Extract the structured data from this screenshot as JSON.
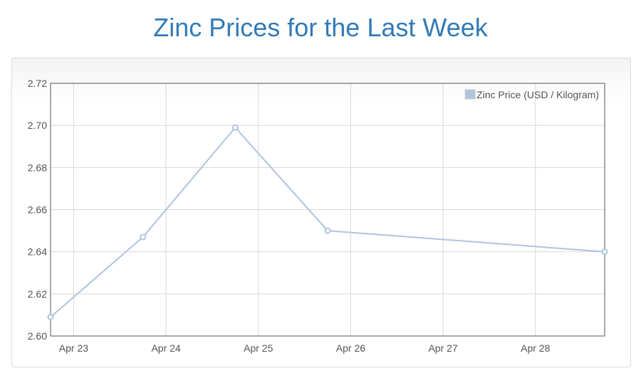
{
  "page": {
    "title": "Zinc Prices for the Last Week"
  },
  "colors": {
    "title": "#337ab7",
    "series": "#b0c4de",
    "grid": "#d8d8d8",
    "axis": "#545454"
  },
  "chart_data": {
    "type": "line",
    "title": "",
    "xlabel": "",
    "ylabel": "",
    "grid": true,
    "legend_position": "top-right",
    "x_ticks": [
      "Apr 23",
      "Apr 24",
      "Apr 25",
      "Apr 26",
      "Apr 27",
      "Apr 28"
    ],
    "y_ticks": [
      "2.60",
      "2.62",
      "2.64",
      "2.66",
      "2.68",
      "2.70",
      "2.72"
    ],
    "ylim": [
      2.6,
      2.72
    ],
    "xlim_days": [
      "Apr 22 18:00",
      "Apr 28 18:00"
    ],
    "series": [
      {
        "name": "Zinc Price (USD / Kilogram)",
        "color": "#b0c4de",
        "points": [
          {
            "date": "Apr 22 18:00",
            "value": 2.609
          },
          {
            "date": "Apr 23 18:00",
            "value": 2.647
          },
          {
            "date": "Apr 24 18:00",
            "value": 2.699
          },
          {
            "date": "Apr 25 18:00",
            "value": 2.65
          },
          {
            "date": "Apr 28 18:00",
            "value": 2.64
          }
        ]
      }
    ]
  }
}
